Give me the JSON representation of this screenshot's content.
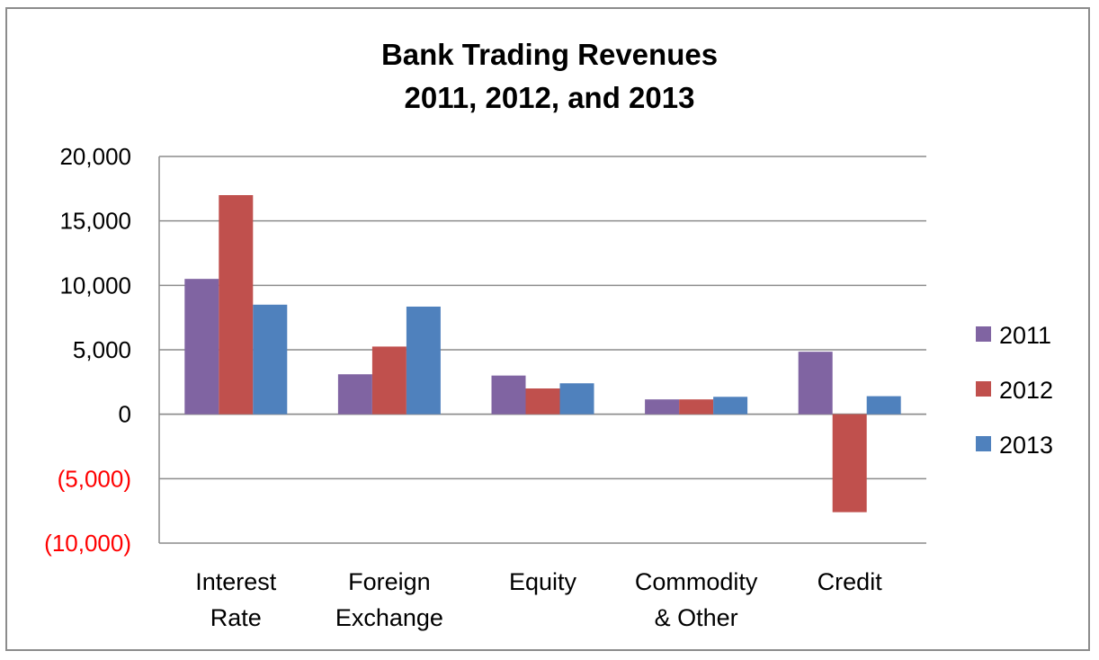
{
  "chart_data": {
    "type": "bar",
    "title": "Bank Trading Revenues",
    "subtitle": "2011, 2012, and 2013",
    "categories": [
      [
        "Interest",
        "Rate"
      ],
      [
        "Foreign",
        "Exchange"
      ],
      [
        "Equity"
      ],
      [
        "Commodity",
        "& Other"
      ],
      [
        "Credit"
      ]
    ],
    "series": [
      {
        "name": "2011",
        "color": "#8064a2",
        "values": [
          10500,
          3100,
          3000,
          1150,
          4850
        ]
      },
      {
        "name": "2012",
        "color": "#c0504d",
        "values": [
          17000,
          5250,
          2000,
          1150,
          -7600
        ]
      },
      {
        "name": "2013",
        "color": "#4f81bd",
        "values": [
          8500,
          8350,
          2400,
          1350,
          1400
        ]
      }
    ],
    "ylim": [
      -10000,
      20000
    ],
    "yticks": [
      20000,
      15000,
      10000,
      5000,
      0,
      -5000,
      -10000
    ],
    "ytick_labels": [
      "20,000",
      "15,000",
      "10,000",
      "5,000",
      "0",
      "(5,000)",
      "(10,000)"
    ],
    "negative_label_color": "#ff0000",
    "grid": true,
    "legend_position": "right"
  }
}
